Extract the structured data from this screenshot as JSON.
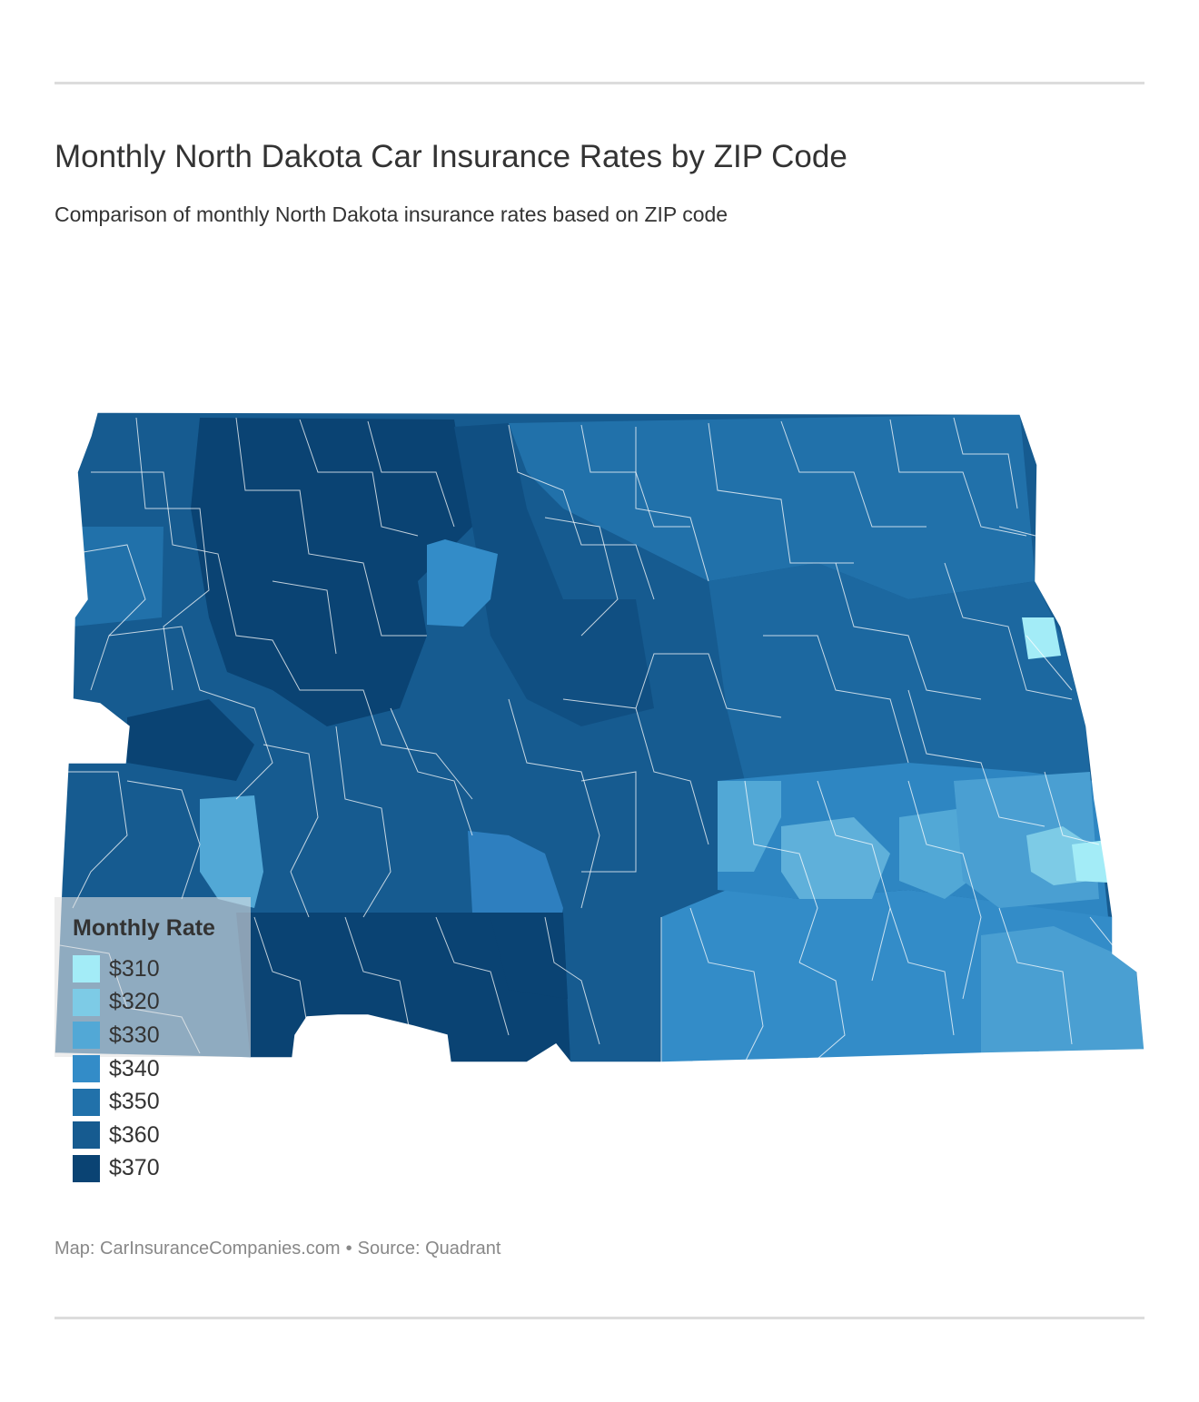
{
  "title": "Monthly North Dakota Car Insurance Rates by ZIP Code",
  "subtitle": "Comparison of monthly North Dakota insurance rates based on ZIP code",
  "legend": {
    "title": "Monthly Rate",
    "items": [
      {
        "label": "$310",
        "color": "#a3ecf7"
      },
      {
        "label": "$320",
        "color": "#7dcbe6"
      },
      {
        "label": "$330",
        "color": "#52a8d6"
      },
      {
        "label": "$340",
        "color": "#338cc8"
      },
      {
        "label": "$350",
        "color": "#2171aa"
      },
      {
        "label": "$360",
        "color": "#165b90"
      },
      {
        "label": "$370",
        "color": "#0a4373"
      }
    ]
  },
  "credit": {
    "map": "Map: CarInsuranceCompanies.com",
    "separator": "•",
    "source": "Source: Quadrant"
  }
}
